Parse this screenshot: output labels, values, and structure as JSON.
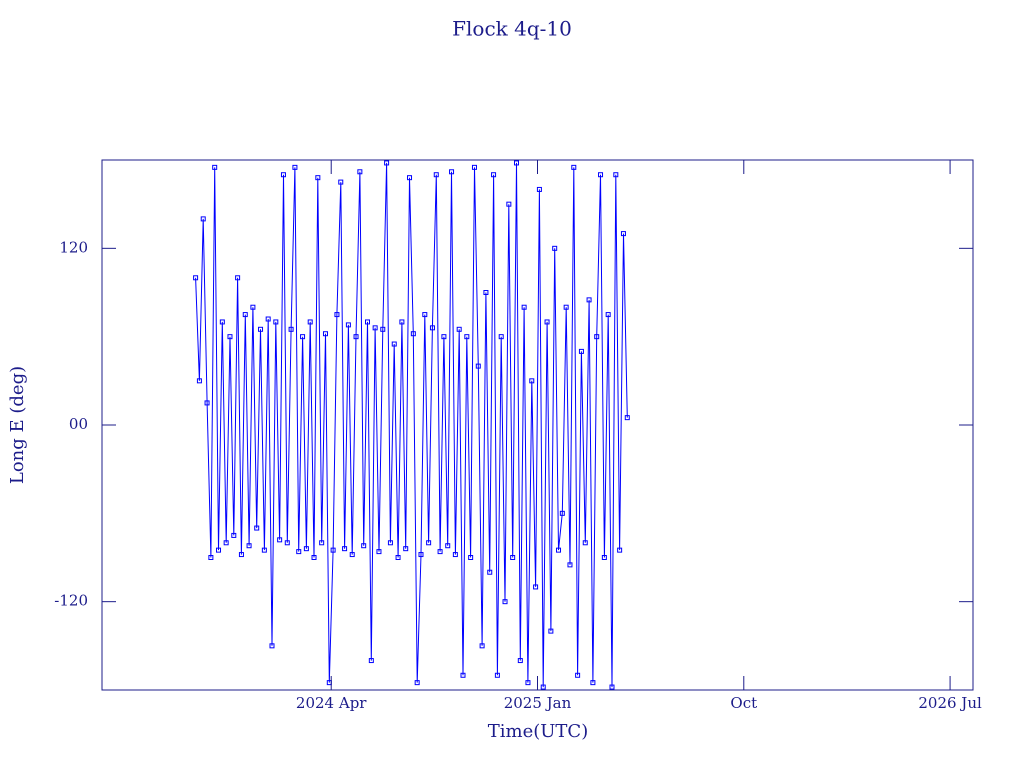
{
  "chart_data": {
    "type": "line",
    "title": "Flock 4q-10",
    "xlabel": "Time(UTC)",
    "ylabel": "Long E (deg)",
    "xlim": [
      "2023-06",
      "2026-08"
    ],
    "xticks": [
      {
        "value": "2024-04",
        "label": "2024 Apr"
      },
      {
        "value": "2025-01",
        "label": "2025 Jan"
      },
      {
        "value": "2025-10",
        "label": "Oct"
      },
      {
        "value": "2026-07",
        "label": "2026 Jul"
      }
    ],
    "ylim": [
      -180,
      180
    ],
    "yticks": [
      -120,
      {
        "value": 0,
        "label": "00"
      },
      120
    ],
    "x": [
      "2023-10",
      "2023-10",
      "2023-10",
      "2023-10",
      "2023-10",
      "2023-10",
      "2023-11",
      "2023-11",
      "2023-11",
      "2023-11",
      "2023-11",
      "2023-11",
      "2023-12",
      "2023-12",
      "2023-12",
      "2023-12",
      "2023-12",
      "2023-12",
      "2024-01",
      "2024-01",
      "2024-01",
      "2024-01",
      "2024-01",
      "2024-01",
      "2024-02",
      "2024-02",
      "2024-02",
      "2024-02",
      "2024-02",
      "2024-02",
      "2024-03",
      "2024-03",
      "2024-03",
      "2024-03",
      "2024-03",
      "2024-03",
      "2024-04",
      "2024-04",
      "2024-04",
      "2024-04",
      "2024-04",
      "2024-04",
      "2024-05",
      "2024-05",
      "2024-05",
      "2024-05",
      "2024-05",
      "2024-05",
      "2024-06",
      "2024-06",
      "2024-06",
      "2024-06",
      "2024-06",
      "2024-06",
      "2024-07",
      "2024-07",
      "2024-07",
      "2024-07",
      "2024-07",
      "2024-07",
      "2024-08",
      "2024-08",
      "2024-08",
      "2024-08",
      "2024-08",
      "2024-08",
      "2024-09",
      "2024-09",
      "2024-09",
      "2024-09",
      "2024-09",
      "2024-09",
      "2024-10",
      "2024-10",
      "2024-10",
      "2024-10",
      "2024-10",
      "2024-10",
      "2024-11",
      "2024-11",
      "2024-11",
      "2024-11",
      "2024-11",
      "2024-11",
      "2024-12",
      "2024-12",
      "2024-12",
      "2024-12",
      "2024-12",
      "2024-12",
      "2025-01",
      "2025-01",
      "2025-01",
      "2025-01",
      "2025-01",
      "2025-01",
      "2025-02",
      "2025-02",
      "2025-02",
      "2025-02",
      "2025-02",
      "2025-02",
      "2025-03",
      "2025-03",
      "2025-03",
      "2025-03",
      "2025-03",
      "2025-03",
      "2025-04",
      "2025-04",
      "2025-04",
      "2025-04",
      "2025-04",
      "2025-04"
    ],
    "series": [
      {
        "name": "Flock 4q-10",
        "color": "#0000ff",
        "values": [
          100,
          30,
          140,
          15,
          -90,
          175,
          -85,
          70,
          -80,
          60,
          -75,
          100,
          -88,
          75,
          -82,
          80,
          -70,
          65,
          -85,
          72,
          -150,
          70,
          -78,
          170,
          -80,
          65,
          175,
          -86,
          60,
          -84,
          70,
          -90,
          168,
          -80,
          62,
          -175,
          -85,
          75,
          165,
          -84,
          68,
          -88,
          60,
          172,
          -82,
          70,
          -160,
          66,
          -86,
          65,
          178,
          -80,
          55,
          -90,
          70,
          -84,
          168,
          62,
          -175,
          -88,
          75,
          -80,
          66,
          170,
          -86,
          60,
          -82,
          172,
          -88,
          65,
          -170,
          60,
          -90,
          175,
          40,
          -150,
          90,
          -100,
          170,
          -170,
          60,
          -120,
          150,
          -90,
          178,
          -160,
          80,
          -175,
          30,
          -110,
          160,
          -178,
          70,
          -140,
          120,
          -85,
          -60,
          80,
          -95,
          175,
          -170,
          50,
          -80,
          85,
          -175,
          60,
          170,
          -90,
          75,
          -178,
          170,
          -85,
          130,
          5
        ]
      }
    ]
  }
}
